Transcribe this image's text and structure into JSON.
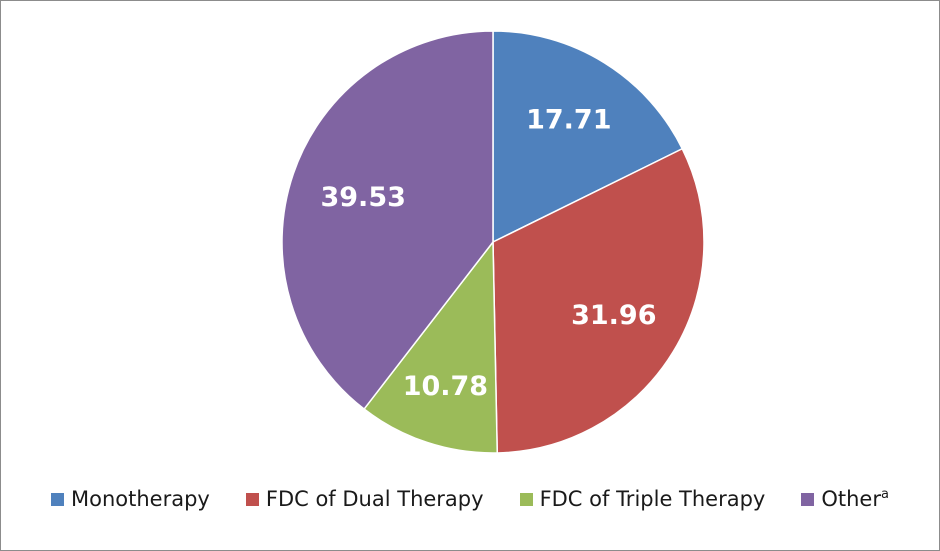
{
  "chart_data": {
    "type": "pie",
    "title": "",
    "categories": [
      "Monotherapy",
      "FDC of Dual Therapy",
      "FDC of Triple Therapy",
      "Other"
    ],
    "values": [
      17.71,
      31.96,
      10.78,
      39.53
    ],
    "labels": [
      "17.71",
      "31.96",
      "10.78",
      "39.53"
    ],
    "colors": [
      "#4f81bd",
      "#c0504d",
      "#9bbb59",
      "#8064a2"
    ],
    "start_angle": "12 o'clock",
    "direction": "clockwise",
    "legend": {
      "position": "bottom",
      "items": [
        {
          "label": "Monotherapy",
          "superscript": ""
        },
        {
          "label": "FDC of Dual Therapy",
          "superscript": ""
        },
        {
          "label": "FDC of Triple Therapy",
          "superscript": ""
        },
        {
          "label": "Other",
          "superscript": "a"
        }
      ]
    }
  }
}
